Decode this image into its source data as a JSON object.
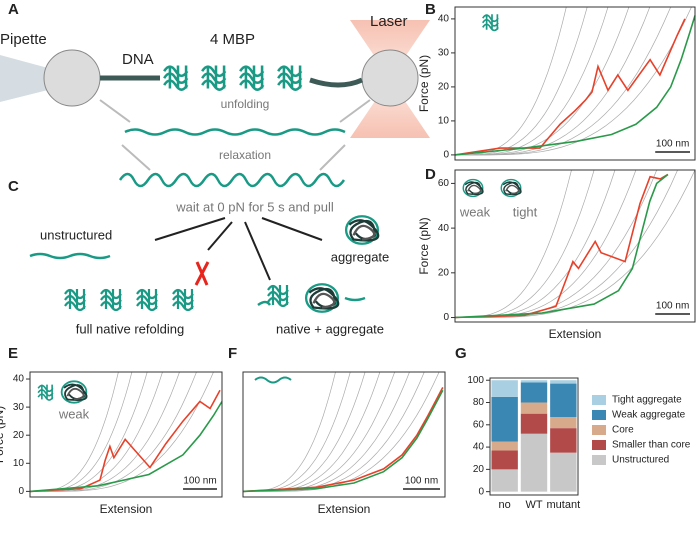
{
  "schematic": {
    "panel_labels": [
      "A",
      "C"
    ],
    "pipette": "Pipette",
    "dna": "DNA",
    "protein": "4 MBP",
    "laser": "Laser",
    "unfolding": "unfolding",
    "relaxation": "relaxation",
    "wait": "wait at 0 pN for 5 s and pull",
    "unstructured": "unstructured",
    "aggregate": "aggregate",
    "full_native": "full native refolding",
    "native_aggregate": "native + aggregate"
  },
  "chart_data": [
    {
      "type": "line",
      "panel": "B",
      "ylabel": "Force (pN)",
      "xlim": [
        0,
        690
      ],
      "ylim": [
        -1.5,
        43.5
      ],
      "yticks": [
        0,
        10,
        20,
        30,
        40
      ],
      "scale_bar": {
        "value": 100,
        "label": "100 nm"
      },
      "guide_curves": [
        [
          0,
          320
        ],
        [
          10,
          380
        ],
        [
          20,
          440
        ],
        [
          30,
          500
        ],
        [
          40,
          560
        ],
        [
          50,
          620
        ],
        [
          60,
          680
        ]
      ],
      "series": [
        {
          "color": "#e8412a",
          "x": [
            0,
            130,
            244,
            302,
            345,
            374,
            394,
            411,
            440,
            468,
            497,
            561,
            589,
            638,
            661
          ],
          "values": [
            0,
            2,
            2,
            9,
            13,
            16,
            18.5,
            26,
            19,
            23.5,
            19,
            28,
            23.5,
            35,
            40
          ]
        },
        {
          "color": "#2a9a4a",
          "x": [
            0,
            200,
            350,
            450,
            520,
            580,
            620,
            650,
            675,
            690
          ],
          "values": [
            0,
            2,
            4,
            6,
            9,
            14,
            20,
            28,
            36,
            41
          ]
        }
      ]
    },
    {
      "type": "line",
      "panel": "D",
      "ylabel": "Force (pN)",
      "xlabel": "Extension",
      "inset_labels": [
        "weak",
        "tight"
      ],
      "xlim": [
        0,
        690
      ],
      "ylim": [
        -2,
        66
      ],
      "yticks": [
        0,
        20,
        40,
        60
      ],
      "scale_bar": {
        "value": 100,
        "label": "100 nm"
      },
      "guide_curves": [
        [
          0,
          335
        ],
        [
          10,
          400
        ],
        [
          20,
          460
        ],
        [
          30,
          520
        ],
        [
          40,
          580
        ],
        [
          50,
          640
        ],
        [
          60,
          690
        ]
      ],
      "series": [
        {
          "color": "#e8412a",
          "x": [
            0,
            200,
            290,
            339,
            355,
            403,
            420,
            489,
            532,
            561,
            590,
            612
          ],
          "values": [
            0,
            1,
            5,
            25,
            22,
            34,
            29,
            25,
            51,
            63,
            62,
            64
          ]
        },
        {
          "color": "#2a9a4a",
          "x": [
            0,
            250,
            400,
            470,
            510,
            540,
            560,
            580,
            612
          ],
          "values": [
            0,
            2,
            6,
            12,
            22,
            40,
            52,
            60,
            64
          ]
        }
      ]
    },
    {
      "type": "line",
      "panel": "E",
      "ylabel": "Force (pN)",
      "xlabel": "Extension",
      "inset_labels": [
        "weak"
      ],
      "xlim": [
        0,
        565
      ],
      "ylim": [
        -2,
        42.5
      ],
      "yticks": [
        0,
        10,
        20,
        30,
        40
      ],
      "scale_bar": {
        "value": 100,
        "label": "100 nm"
      },
      "guide_curves": [
        [
          0,
          260
        ],
        [
          10,
          300
        ],
        [
          20,
          345
        ],
        [
          30,
          390
        ],
        [
          40,
          440
        ],
        [
          50,
          490
        ],
        [
          60,
          540
        ]
      ],
      "series": [
        {
          "color": "#e8412a",
          "x": [
            0,
            150,
            206,
            221,
            235,
            247,
            280,
            353,
            400,
            450,
            500,
            530,
            559
          ],
          "values": [
            0,
            1,
            4,
            11,
            16,
            12,
            18.5,
            8.5,
            17,
            25,
            32,
            29.5,
            36
          ]
        },
        {
          "color": "#2a9a4a",
          "x": [
            0,
            200,
            350,
            450,
            500,
            540,
            565
          ],
          "values": [
            0,
            2,
            6,
            13,
            20,
            27,
            32
          ]
        }
      ]
    },
    {
      "type": "line",
      "panel": "F",
      "xlabel": "Extension",
      "xlim": [
        0,
        546
      ],
      "ylim": [
        -2,
        42.5
      ],
      "scale_bar": {
        "value": 100,
        "label": "100 nm"
      },
      "guide_curves": [
        [
          0,
          250
        ],
        [
          10,
          290
        ],
        [
          20,
          330
        ],
        [
          30,
          370
        ],
        [
          40,
          410
        ],
        [
          50,
          450
        ],
        [
          60,
          490
        ],
        [
          70,
          530
        ]
      ],
      "series": [
        {
          "color": "#e8412a",
          "x": [
            0,
            200,
            300,
            380,
            430,
            470,
            500,
            520,
            540
          ],
          "values": [
            0,
            1.5,
            4,
            8,
            13,
            20,
            27,
            32,
            37
          ]
        },
        {
          "color": "#2a9a4a",
          "x": [
            0,
            200,
            300,
            380,
            430,
            470,
            500,
            520,
            540
          ],
          "values": [
            0,
            1,
            3,
            7,
            12,
            19,
            26,
            31,
            36
          ]
        }
      ]
    },
    {
      "type": "bar",
      "panel": "G",
      "stacked": true,
      "legend": "right",
      "categories": [
        "no",
        "WT",
        "mutant"
      ],
      "ylim": [
        -3,
        102
      ],
      "yticks": [
        0,
        20,
        40,
        60,
        80,
        100
      ],
      "series": [
        {
          "name": "Unstructured",
          "color": "#c8c8c8",
          "values": [
            20,
            52,
            35
          ]
        },
        {
          "name": "Smaller than core",
          "color": "#b24a4a",
          "values": [
            17,
            18,
            22
          ]
        },
        {
          "name": "Core",
          "color": "#d8aa8c",
          "values": [
            8,
            10,
            10
          ]
        },
        {
          "name": "Weak aggregate",
          "color": "#3b87b3",
          "values": [
            40,
            18,
            30
          ]
        },
        {
          "name": "Tight aggregate",
          "color": "#a9cfe2",
          "values": [
            15,
            2,
            3
          ]
        }
      ]
    }
  ]
}
